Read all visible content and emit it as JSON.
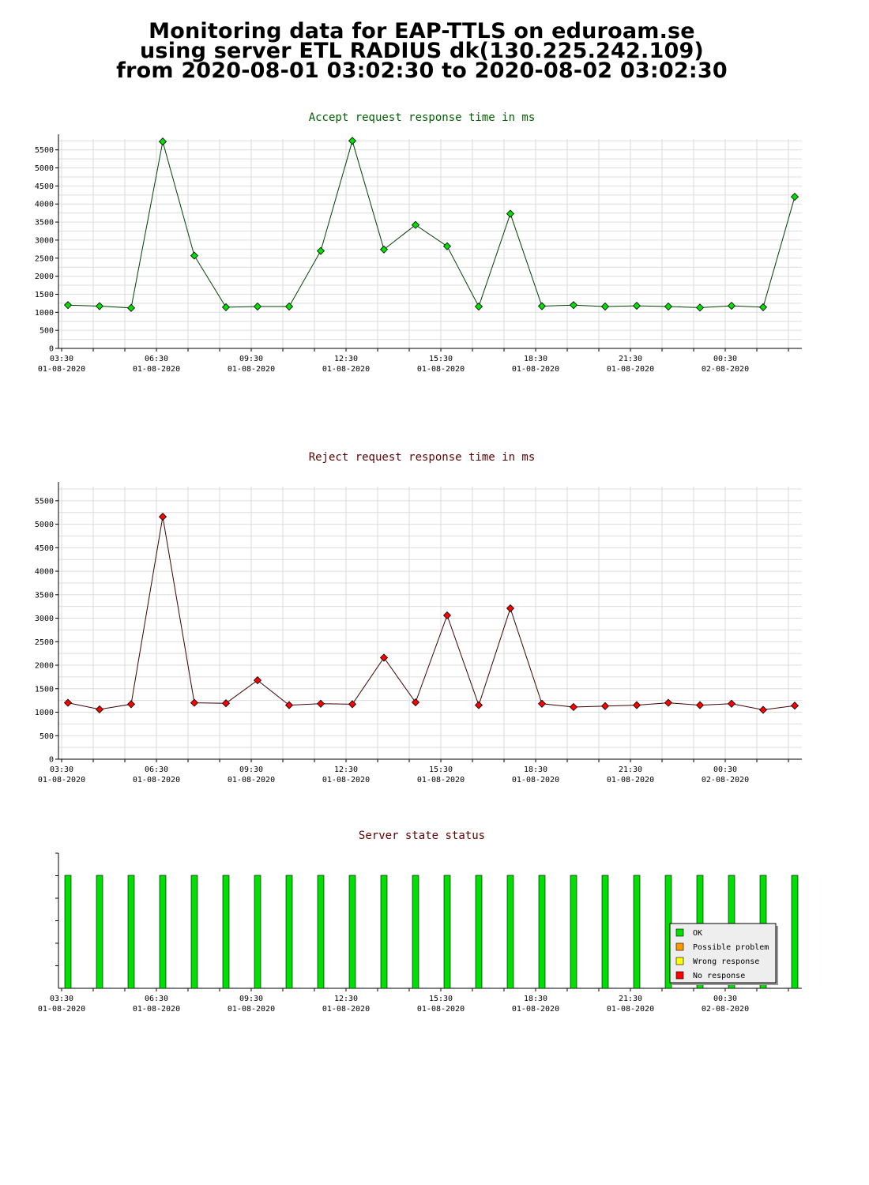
{
  "heading": {
    "line1": "Monitoring data for EAP-TTLS on eduroam.se",
    "line2": "using server ETL RADIUS dk(130.225.242.109)",
    "line3": "from 2020-08-01 03:02:30 to 2020-08-02 03:02:30"
  },
  "colors": {
    "accept_title": "#006000",
    "reject_title": "#600000",
    "status_title": "#600000",
    "accept_marker": "#00e000",
    "reject_marker": "#ff0000",
    "accept_line": "#004000",
    "reject_line": "#400000",
    "ok": "#00e000",
    "possible_problem": "#ff9900",
    "wrong_response": "#ffff00",
    "no_response": "#ff0000",
    "grid": "#dddddd"
  },
  "x_ticks": [
    {
      "time": "03:30",
      "date": "01-08-2020"
    },
    {
      "time": "06:30",
      "date": "01-08-2020"
    },
    {
      "time": "09:30",
      "date": "01-08-2020"
    },
    {
      "time": "12:30",
      "date": "01-08-2020"
    },
    {
      "time": "15:30",
      "date": "01-08-2020"
    },
    {
      "time": "18:30",
      "date": "01-08-2020"
    },
    {
      "time": "21:30",
      "date": "01-08-2020"
    },
    {
      "time": "00:30",
      "date": "02-08-2020"
    }
  ],
  "chart_data": [
    {
      "type": "line",
      "title": "Accept request response time in ms",
      "xlabel": "",
      "ylabel": "",
      "ylim": [
        0,
        5800
      ],
      "y_ticks": [
        0,
        500,
        1000,
        1500,
        2000,
        2500,
        3000,
        3500,
        4000,
        4500,
        5000,
        5500
      ],
      "x": [
        "2020-08-01 03:42",
        "2020-08-01 04:42",
        "2020-08-01 05:42",
        "2020-08-01 06:42",
        "2020-08-01 07:42",
        "2020-08-01 08:42",
        "2020-08-01 09:42",
        "2020-08-01 10:42",
        "2020-08-01 11:42",
        "2020-08-01 12:42",
        "2020-08-01 13:42",
        "2020-08-01 14:42",
        "2020-08-01 15:42",
        "2020-08-01 16:42",
        "2020-08-01 17:42",
        "2020-08-01 18:42",
        "2020-08-01 19:42",
        "2020-08-01 20:42",
        "2020-08-01 21:42",
        "2020-08-01 22:42",
        "2020-08-01 23:42",
        "2020-08-02 00:42",
        "2020-08-02 01:42",
        "2020-08-02 02:42"
      ],
      "x_hours": [
        3.7,
        4.7,
        5.7,
        6.7,
        7.7,
        8.7,
        9.7,
        10.7,
        11.7,
        12.7,
        13.7,
        14.7,
        15.7,
        16.7,
        17.7,
        18.7,
        19.7,
        20.7,
        21.7,
        22.7,
        23.7,
        24.7,
        25.7,
        26.7
      ],
      "values": [
        1200,
        1170,
        1120,
        5730,
        2570,
        1140,
        1160,
        1160,
        2700,
        5750,
        2740,
        3420,
        2830,
        1160,
        3730,
        1170,
        1200,
        1160,
        1180,
        1160,
        1130,
        1180,
        1140,
        4200
      ],
      "grid": true
    },
    {
      "type": "line",
      "title": "Reject request response time in ms",
      "xlabel": "",
      "ylabel": "",
      "ylim": [
        0,
        5800
      ],
      "y_ticks": [
        0,
        500,
        1000,
        1500,
        2000,
        2500,
        3000,
        3500,
        4000,
        4500,
        5000,
        5500
      ],
      "x": [
        "2020-08-01 03:42",
        "2020-08-01 04:42",
        "2020-08-01 05:42",
        "2020-08-01 06:42",
        "2020-08-01 07:42",
        "2020-08-01 08:42",
        "2020-08-01 09:42",
        "2020-08-01 10:42",
        "2020-08-01 11:42",
        "2020-08-01 12:42",
        "2020-08-01 13:42",
        "2020-08-01 14:42",
        "2020-08-01 15:42",
        "2020-08-01 16:42",
        "2020-08-01 17:42",
        "2020-08-01 18:42",
        "2020-08-01 19:42",
        "2020-08-01 20:42",
        "2020-08-01 21:42",
        "2020-08-01 22:42",
        "2020-08-01 23:42",
        "2020-08-02 00:42",
        "2020-08-02 01:42",
        "2020-08-02 02:42"
      ],
      "x_hours": [
        3.7,
        4.7,
        5.7,
        6.7,
        7.7,
        8.7,
        9.7,
        10.7,
        11.7,
        12.7,
        13.7,
        14.7,
        15.7,
        16.7,
        17.7,
        18.7,
        19.7,
        20.7,
        21.7,
        22.7,
        23.7,
        24.7,
        25.7,
        26.7
      ],
      "values": [
        1200,
        1060,
        1170,
        5160,
        1200,
        1190,
        1680,
        1150,
        1180,
        1170,
        2160,
        1210,
        3060,
        1150,
        3210,
        1180,
        1110,
        1130,
        1150,
        1200,
        1150,
        1180,
        1050,
        1140
      ],
      "grid": true
    },
    {
      "type": "bar",
      "title": "Server state status",
      "x_hours": [
        3.7,
        4.7,
        5.7,
        6.7,
        7.7,
        8.7,
        9.7,
        10.7,
        11.7,
        12.7,
        13.7,
        14.7,
        15.7,
        16.7,
        17.7,
        18.7,
        19.7,
        20.7,
        21.7,
        22.7,
        23.7,
        24.7,
        25.7,
        26.7
      ],
      "states": [
        "OK",
        "OK",
        "OK",
        "OK",
        "OK",
        "OK",
        "OK",
        "OK",
        "OK",
        "OK",
        "OK",
        "OK",
        "OK",
        "OK",
        "OK",
        "OK",
        "OK",
        "OK",
        "OK",
        "OK",
        "OK",
        "OK",
        "OK",
        "OK"
      ],
      "legend": [
        "OK",
        "Possible problem",
        "Wrong response",
        "No response"
      ],
      "legend_position": "bottom-right"
    }
  ]
}
